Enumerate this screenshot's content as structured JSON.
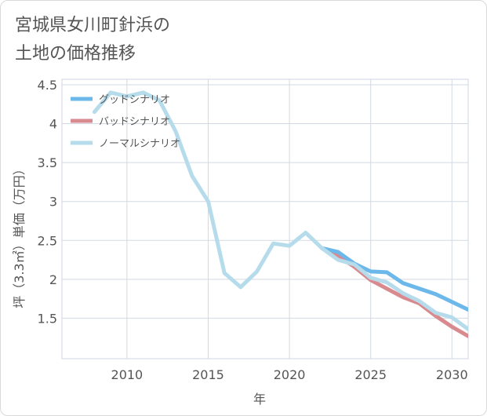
{
  "title_line1": "宮城県女川町針浜の",
  "title_line2": "土地の価格推移",
  "chart_data": {
    "type": "line",
    "xlabel": "年",
    "ylabel": "坪（3.3㎡）単価（万円）",
    "xlim": [
      2006,
      2031
    ],
    "ylim": [
      0.98,
      4.57
    ],
    "xticks": [
      2010,
      2015,
      2020,
      2025,
      2030
    ],
    "yticks": [
      1.5,
      2,
      2.5,
      3,
      3.5,
      4,
      4.5
    ],
    "grid": true,
    "legend_position": "top-left",
    "series": [
      {
        "name": "グッドシナリオ",
        "color": "#6cb8ea",
        "x": [
          2022,
          2023,
          2024,
          2025,
          2026,
          2027,
          2028,
          2029,
          2030,
          2031
        ],
        "y": [
          2.4,
          2.35,
          2.2,
          2.1,
          2.09,
          1.95,
          1.88,
          1.81,
          1.71,
          1.61
        ]
      },
      {
        "name": "バッドシナリオ",
        "color": "#d98a8f",
        "x": [
          2022,
          2023,
          2024,
          2025,
          2026,
          2027,
          2028,
          2029,
          2030,
          2031
        ],
        "y": [
          2.4,
          2.3,
          2.16,
          1.99,
          1.88,
          1.77,
          1.69,
          1.53,
          1.39,
          1.27
        ]
      },
      {
        "name": "ノーマルシナリオ",
        "color": "#b6dcec",
        "x": [
          2008,
          2009,
          2010,
          2011,
          2012,
          2013,
          2014,
          2015,
          2016,
          2017,
          2018,
          2019,
          2020,
          2021,
          2022,
          2023,
          2024,
          2025,
          2026,
          2027,
          2028,
          2029,
          2030,
          2031
        ],
        "y": [
          4.15,
          4.4,
          4.35,
          4.4,
          4.3,
          3.9,
          3.33,
          3.0,
          2.08,
          1.9,
          2.1,
          2.46,
          2.43,
          2.6,
          2.4,
          2.25,
          2.19,
          2.02,
          1.96,
          1.82,
          1.72,
          1.57,
          1.51,
          1.36
        ]
      }
    ]
  }
}
